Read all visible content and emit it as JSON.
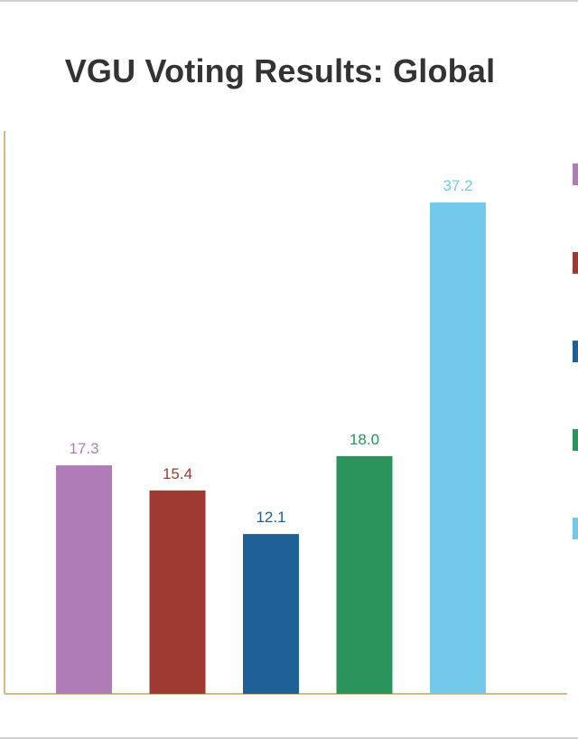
{
  "chart_data": {
    "type": "bar",
    "title": "VGU Voting Results: Global",
    "xlabel": "",
    "ylabel": "",
    "categories": [
      "",
      "",
      "",
      "",
      ""
    ],
    "values": [
      17.3,
      15.4,
      12.1,
      18.0,
      37.2
    ],
    "value_labels": [
      "17.3",
      "15.4",
      "12.1",
      "18.0",
      "37.2"
    ],
    "colors": [
      "#b07cb7",
      "#9e3a31",
      "#1f6196",
      "#2a945c",
      "#72c9ea"
    ],
    "ylim": [
      0,
      40
    ],
    "grid": false,
    "legend_position": "right",
    "axis_color": "#d6b88a"
  }
}
